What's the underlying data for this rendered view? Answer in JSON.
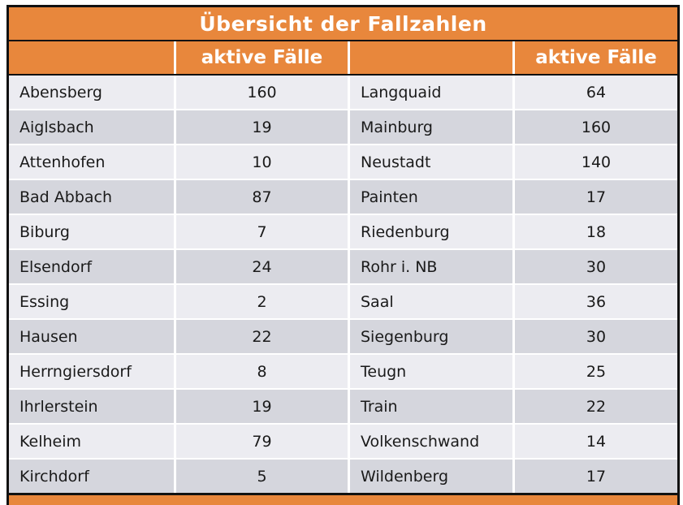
{
  "title_bar": {
    "title": "Übersicht der Fallzahlen"
  },
  "header": {
    "value_column_label": "aktive Fälle"
  },
  "chart_data": {
    "type": "table",
    "title": "Übersicht der Fallzahlen",
    "column_headers": [
      "",
      "aktive Fälle",
      "",
      "aktive Fälle"
    ],
    "left": [
      {
        "name": "Abensberg",
        "value": "160"
      },
      {
        "name": "Aiglsbach",
        "value": "19"
      },
      {
        "name": "Attenhofen",
        "value": "10"
      },
      {
        "name": "Bad Abbach",
        "value": "87"
      },
      {
        "name": "Biburg",
        "value": "7"
      },
      {
        "name": "Elsendorf",
        "value": "24"
      },
      {
        "name": "Essing",
        "value": "2"
      },
      {
        "name": "Hausen",
        "value": "22"
      },
      {
        "name": "Herrngiersdorf",
        "value": "8"
      },
      {
        "name": "Ihrlerstein",
        "value": "19"
      },
      {
        "name": "Kelheim",
        "value": "79"
      },
      {
        "name": "Kirchdorf",
        "value": "5"
      }
    ],
    "right": [
      {
        "name": "Langquaid",
        "value": "64"
      },
      {
        "name": "Mainburg",
        "value": "160"
      },
      {
        "name": "Neustadt",
        "value": "140"
      },
      {
        "name": "Painten",
        "value": "17"
      },
      {
        "name": "Riedenburg",
        "value": "18"
      },
      {
        "name": "Rohr i. NB",
        "value": "30"
      },
      {
        "name": "Saal",
        "value": "36"
      },
      {
        "name": "Siegenburg",
        "value": "30"
      },
      {
        "name": "Teugn",
        "value": "25"
      },
      {
        "name": "Train",
        "value": "22"
      },
      {
        "name": "Volkenschwand",
        "value": "14"
      },
      {
        "name": "Wildenberg",
        "value": "17"
      }
    ]
  },
  "colors": {
    "header_orange": "#E8873C",
    "row_light": "#ECECF1",
    "row_dark": "#D5D6DD",
    "border_black": "#111111",
    "divider_white": "#FFFFFF",
    "text_dark": "#1A1A1A",
    "header_text": "#FFFFFF"
  }
}
